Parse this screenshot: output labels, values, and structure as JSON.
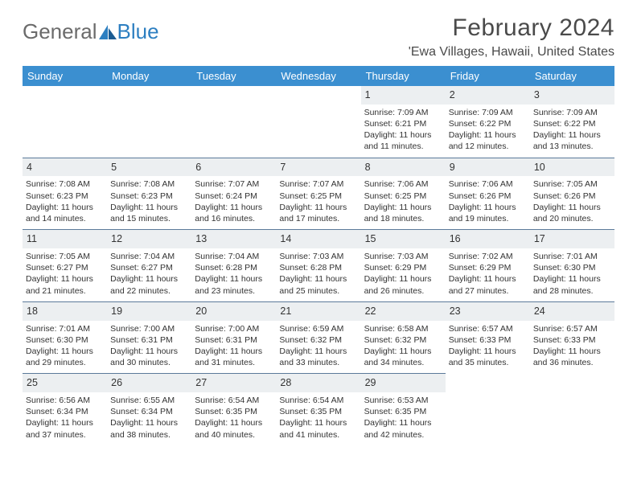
{
  "brand": {
    "part1": "General",
    "part2": "Blue"
  },
  "title": "February 2024",
  "location": "'Ewa Villages, Hawaii, United States",
  "colors": {
    "header_bg": "#3b8fd0",
    "header_text": "#ffffff",
    "daynum_bg": "#eceff1",
    "daynum_border": "#5b7a9a",
    "body_text": "#333333",
    "brand_gray": "#6b6b6b",
    "brand_blue": "#2d7fc1"
  },
  "day_headers": [
    "Sunday",
    "Monday",
    "Tuesday",
    "Wednesday",
    "Thursday",
    "Friday",
    "Saturday"
  ],
  "weeks": [
    [
      null,
      null,
      null,
      null,
      {
        "n": "1",
        "lines": [
          "Sunrise: 7:09 AM",
          "Sunset: 6:21 PM",
          "Daylight: 11 hours",
          "and 11 minutes."
        ]
      },
      {
        "n": "2",
        "lines": [
          "Sunrise: 7:09 AM",
          "Sunset: 6:22 PM",
          "Daylight: 11 hours",
          "and 12 minutes."
        ]
      },
      {
        "n": "3",
        "lines": [
          "Sunrise: 7:09 AM",
          "Sunset: 6:22 PM",
          "Daylight: 11 hours",
          "and 13 minutes."
        ]
      }
    ],
    [
      {
        "n": "4",
        "lines": [
          "Sunrise: 7:08 AM",
          "Sunset: 6:23 PM",
          "Daylight: 11 hours",
          "and 14 minutes."
        ]
      },
      {
        "n": "5",
        "lines": [
          "Sunrise: 7:08 AM",
          "Sunset: 6:23 PM",
          "Daylight: 11 hours",
          "and 15 minutes."
        ]
      },
      {
        "n": "6",
        "lines": [
          "Sunrise: 7:07 AM",
          "Sunset: 6:24 PM",
          "Daylight: 11 hours",
          "and 16 minutes."
        ]
      },
      {
        "n": "7",
        "lines": [
          "Sunrise: 7:07 AM",
          "Sunset: 6:25 PM",
          "Daylight: 11 hours",
          "and 17 minutes."
        ]
      },
      {
        "n": "8",
        "lines": [
          "Sunrise: 7:06 AM",
          "Sunset: 6:25 PM",
          "Daylight: 11 hours",
          "and 18 minutes."
        ]
      },
      {
        "n": "9",
        "lines": [
          "Sunrise: 7:06 AM",
          "Sunset: 6:26 PM",
          "Daylight: 11 hours",
          "and 19 minutes."
        ]
      },
      {
        "n": "10",
        "lines": [
          "Sunrise: 7:05 AM",
          "Sunset: 6:26 PM",
          "Daylight: 11 hours",
          "and 20 minutes."
        ]
      }
    ],
    [
      {
        "n": "11",
        "lines": [
          "Sunrise: 7:05 AM",
          "Sunset: 6:27 PM",
          "Daylight: 11 hours",
          "and 21 minutes."
        ]
      },
      {
        "n": "12",
        "lines": [
          "Sunrise: 7:04 AM",
          "Sunset: 6:27 PM",
          "Daylight: 11 hours",
          "and 22 minutes."
        ]
      },
      {
        "n": "13",
        "lines": [
          "Sunrise: 7:04 AM",
          "Sunset: 6:28 PM",
          "Daylight: 11 hours",
          "and 23 minutes."
        ]
      },
      {
        "n": "14",
        "lines": [
          "Sunrise: 7:03 AM",
          "Sunset: 6:28 PM",
          "Daylight: 11 hours",
          "and 25 minutes."
        ]
      },
      {
        "n": "15",
        "lines": [
          "Sunrise: 7:03 AM",
          "Sunset: 6:29 PM",
          "Daylight: 11 hours",
          "and 26 minutes."
        ]
      },
      {
        "n": "16",
        "lines": [
          "Sunrise: 7:02 AM",
          "Sunset: 6:29 PM",
          "Daylight: 11 hours",
          "and 27 minutes."
        ]
      },
      {
        "n": "17",
        "lines": [
          "Sunrise: 7:01 AM",
          "Sunset: 6:30 PM",
          "Daylight: 11 hours",
          "and 28 minutes."
        ]
      }
    ],
    [
      {
        "n": "18",
        "lines": [
          "Sunrise: 7:01 AM",
          "Sunset: 6:30 PM",
          "Daylight: 11 hours",
          "and 29 minutes."
        ]
      },
      {
        "n": "19",
        "lines": [
          "Sunrise: 7:00 AM",
          "Sunset: 6:31 PM",
          "Daylight: 11 hours",
          "and 30 minutes."
        ]
      },
      {
        "n": "20",
        "lines": [
          "Sunrise: 7:00 AM",
          "Sunset: 6:31 PM",
          "Daylight: 11 hours",
          "and 31 minutes."
        ]
      },
      {
        "n": "21",
        "lines": [
          "Sunrise: 6:59 AM",
          "Sunset: 6:32 PM",
          "Daylight: 11 hours",
          "and 33 minutes."
        ]
      },
      {
        "n": "22",
        "lines": [
          "Sunrise: 6:58 AM",
          "Sunset: 6:32 PM",
          "Daylight: 11 hours",
          "and 34 minutes."
        ]
      },
      {
        "n": "23",
        "lines": [
          "Sunrise: 6:57 AM",
          "Sunset: 6:33 PM",
          "Daylight: 11 hours",
          "and 35 minutes."
        ]
      },
      {
        "n": "24",
        "lines": [
          "Sunrise: 6:57 AM",
          "Sunset: 6:33 PM",
          "Daylight: 11 hours",
          "and 36 minutes."
        ]
      }
    ],
    [
      {
        "n": "25",
        "lines": [
          "Sunrise: 6:56 AM",
          "Sunset: 6:34 PM",
          "Daylight: 11 hours",
          "and 37 minutes."
        ]
      },
      {
        "n": "26",
        "lines": [
          "Sunrise: 6:55 AM",
          "Sunset: 6:34 PM",
          "Daylight: 11 hours",
          "and 38 minutes."
        ]
      },
      {
        "n": "27",
        "lines": [
          "Sunrise: 6:54 AM",
          "Sunset: 6:35 PM",
          "Daylight: 11 hours",
          "and 40 minutes."
        ]
      },
      {
        "n": "28",
        "lines": [
          "Sunrise: 6:54 AM",
          "Sunset: 6:35 PM",
          "Daylight: 11 hours",
          "and 41 minutes."
        ]
      },
      {
        "n": "29",
        "lines": [
          "Sunrise: 6:53 AM",
          "Sunset: 6:35 PM",
          "Daylight: 11 hours",
          "and 42 minutes."
        ]
      },
      null,
      null
    ]
  ]
}
